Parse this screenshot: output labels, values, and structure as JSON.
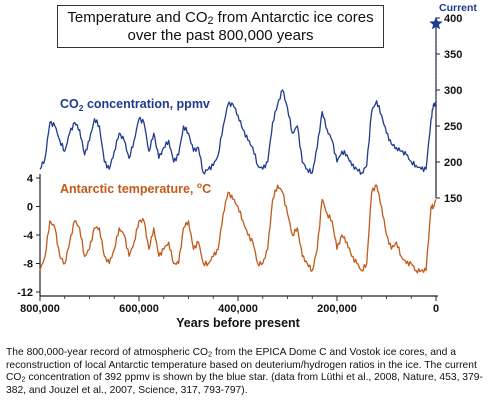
{
  "title_line1_a": "Temperature and CO",
  "title_line1_sub": "2",
  "title_line1_b": " from Antarctic ice cores",
  "title_line2": "over the past 800,000 years",
  "current_label": "Current",
  "caption": {
    "a": "The 800,000-year record of atmospheric CO",
    "sub1": "2",
    "b": " from the EPICA Dome C and Vostok ice cores, and a reconstruction of local Antarctic temperature based on deuterium/hydrogen ratios in the ice. The current CO",
    "sub2": "2",
    "c": " concentration of 392 ppmv is shown by the blue star. (data from Lüthi et al., 2008, Nature, 453, 379-382, and Jouzel et al., 2007, Science, 317, 793-797)."
  },
  "chart_data": {
    "type": "line",
    "xlabel": "Years before present",
    "xlim": [
      800000,
      0
    ],
    "x_ticks": [
      800000,
      600000,
      400000,
      200000,
      0
    ],
    "x_tick_labels": [
      "800,000",
      "600,000",
      "400,000",
      "200,000",
      "0"
    ],
    "co2_axis": {
      "ylim": [
        150,
        400
      ],
      "ticks": [
        150,
        200,
        250,
        300,
        350,
        400
      ],
      "side": "right"
    },
    "temp_axis": {
      "ylim": [
        -12,
        4
      ],
      "ticks": [
        4,
        0,
        -4,
        -8,
        -12
      ],
      "side": "left"
    },
    "series": [
      {
        "name_a": "CO",
        "name_sub": "2",
        "name_b": " concentration, ppmv",
        "color": "#1f3b8f",
        "axis": "right",
        "x": [
          800000,
          790000,
          780000,
          770000,
          760000,
          750000,
          740000,
          730000,
          720000,
          710000,
          700000,
          690000,
          680000,
          670000,
          660000,
          650000,
          640000,
          630000,
          620000,
          610000,
          600000,
          590000,
          580000,
          570000,
          560000,
          550000,
          540000,
          530000,
          520000,
          510000,
          500000,
          490000,
          480000,
          470000,
          460000,
          450000,
          440000,
          430000,
          420000,
          410000,
          400000,
          390000,
          380000,
          370000,
          360000,
          350000,
          340000,
          330000,
          320000,
          310000,
          300000,
          290000,
          280000,
          270000,
          260000,
          250000,
          240000,
          230000,
          220000,
          210000,
          200000,
          190000,
          180000,
          170000,
          160000,
          150000,
          140000,
          130000,
          120000,
          110000,
          100000,
          90000,
          80000,
          70000,
          60000,
          50000,
          40000,
          30000,
          20000,
          10000,
          5000,
          0
        ],
        "values": [
          190,
          205,
          255,
          250,
          230,
          215,
          240,
          255,
          245,
          210,
          230,
          260,
          250,
          200,
          190,
          215,
          240,
          230,
          205,
          230,
          260,
          255,
          215,
          240,
          205,
          220,
          230,
          200,
          210,
          250,
          240,
          215,
          220,
          185,
          190,
          195,
          210,
          250,
          280,
          280,
          265,
          245,
          230,
          220,
          195,
          190,
          200,
          255,
          280,
          300,
          275,
          240,
          250,
          200,
          190,
          185,
          220,
          270,
          245,
          230,
          200,
          215,
          210,
          195,
          190,
          185,
          195,
          270,
          285,
          265,
          240,
          225,
          220,
          215,
          210,
          200,
          195,
          190,
          190,
          260,
          280,
          280
        ]
      },
      {
        "name_a": "Antarctic temperature, ",
        "name_deg": "o",
        "name_b": "C",
        "color": "#c25a1a",
        "axis": "left",
        "x": [
          800000,
          790000,
          780000,
          770000,
          760000,
          750000,
          740000,
          730000,
          720000,
          710000,
          700000,
          690000,
          680000,
          670000,
          660000,
          650000,
          640000,
          630000,
          620000,
          610000,
          600000,
          590000,
          580000,
          570000,
          560000,
          550000,
          540000,
          530000,
          520000,
          510000,
          500000,
          490000,
          480000,
          470000,
          460000,
          450000,
          440000,
          430000,
          420000,
          410000,
          400000,
          390000,
          380000,
          370000,
          360000,
          350000,
          340000,
          330000,
          320000,
          310000,
          300000,
          290000,
          280000,
          270000,
          260000,
          250000,
          240000,
          230000,
          220000,
          210000,
          200000,
          190000,
          180000,
          170000,
          160000,
          150000,
          140000,
          130000,
          120000,
          110000,
          100000,
          90000,
          80000,
          70000,
          60000,
          50000,
          40000,
          30000,
          20000,
          10000,
          5000,
          0
        ],
        "values": [
          -9,
          -7,
          -2,
          -3,
          -7,
          -8,
          -5,
          -2,
          -3,
          -7,
          -6,
          -3,
          -3,
          -7,
          -8,
          -6,
          -3,
          -4,
          -7,
          -5,
          -2,
          -2,
          -6,
          -3,
          -7,
          -6,
          -5,
          -8,
          -8,
          -3,
          -2,
          -6,
          -5,
          -8,
          -8,
          -7,
          -6,
          -1,
          2,
          1,
          0,
          -2,
          -4,
          -5,
          -8,
          -8,
          -6,
          1,
          3,
          2,
          -1,
          -4,
          -3,
          -7,
          -8,
          -9,
          -6,
          1,
          -1,
          -2,
          -6,
          -4,
          -5,
          -7,
          -8,
          -9,
          -8,
          2,
          3,
          0,
          -4,
          -6,
          -5,
          -7,
          -8,
          -8,
          -9,
          -9,
          -9,
          0,
          0,
          1
        ]
      }
    ],
    "current_value": 392,
    "current_x": 0
  }
}
